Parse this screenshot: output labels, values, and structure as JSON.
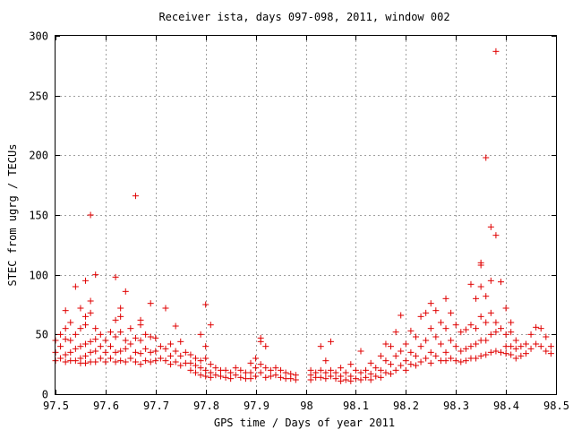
{
  "chart_data": {
    "type": "scatter",
    "title": "Receiver ista, days 097-098, 2011, window 002",
    "xlabel": "GPS time / Days of year 2011",
    "ylabel": "STEC from ugrg / TECUs",
    "xlim": [
      97.5,
      98.5
    ],
    "ylim": [
      0,
      300
    ],
    "x_ticks": [
      "97.5",
      "97.6",
      "97.7",
      "97.8",
      "97.9",
      "98",
      "98.1",
      "98.2",
      "98.3",
      "98.4",
      "98.5"
    ],
    "y_ticks": [
      "0",
      "50",
      "100",
      "150",
      "200",
      "250",
      "300"
    ],
    "grid": true,
    "marker": "plus",
    "marker_color": "#e00000",
    "series": [
      {
        "points": [
          [
            97.5,
            45
          ],
          [
            97.5,
            35
          ],
          [
            97.5,
            28
          ],
          [
            97.51,
            50
          ],
          [
            97.51,
            40
          ],
          [
            97.51,
            30
          ],
          [
            97.52,
            70
          ],
          [
            97.52,
            55
          ],
          [
            97.52,
            46
          ],
          [
            97.52,
            33
          ],
          [
            97.52,
            27
          ],
          [
            97.53,
            60
          ],
          [
            97.53,
            45
          ],
          [
            97.53,
            35
          ],
          [
            97.53,
            28
          ],
          [
            97.54,
            90
          ],
          [
            97.54,
            50
          ],
          [
            97.54,
            38
          ],
          [
            97.54,
            28
          ],
          [
            97.55,
            72
          ],
          [
            97.55,
            55
          ],
          [
            97.55,
            40
          ],
          [
            97.55,
            30
          ],
          [
            97.55,
            26
          ],
          [
            97.56,
            95
          ],
          [
            97.56,
            65
          ],
          [
            97.56,
            58
          ],
          [
            97.56,
            42
          ],
          [
            97.56,
            32
          ],
          [
            97.56,
            26
          ],
          [
            97.57,
            150
          ],
          [
            97.57,
            78
          ],
          [
            97.57,
            68
          ],
          [
            97.57,
            44
          ],
          [
            97.57,
            35
          ],
          [
            97.57,
            27
          ],
          [
            97.58,
            100
          ],
          [
            97.58,
            55
          ],
          [
            97.58,
            46
          ],
          [
            97.58,
            36
          ],
          [
            97.58,
            27
          ],
          [
            97.59,
            50
          ],
          [
            97.59,
            40
          ],
          [
            97.59,
            30
          ],
          [
            97.6,
            45
          ],
          [
            97.6,
            35
          ],
          [
            97.6,
            27
          ],
          [
            97.61,
            52
          ],
          [
            97.61,
            40
          ],
          [
            97.61,
            30
          ],
          [
            97.62,
            98
          ],
          [
            97.62,
            62
          ],
          [
            97.62,
            48
          ],
          [
            97.62,
            35
          ],
          [
            97.62,
            27
          ],
          [
            97.63,
            72
          ],
          [
            97.63,
            65
          ],
          [
            97.63,
            52
          ],
          [
            97.63,
            36
          ],
          [
            97.63,
            28
          ],
          [
            97.64,
            86
          ],
          [
            97.64,
            45
          ],
          [
            97.64,
            38
          ],
          [
            97.64,
            27
          ],
          [
            97.65,
            55
          ],
          [
            97.65,
            42
          ],
          [
            97.65,
            30
          ],
          [
            97.66,
            166
          ],
          [
            97.66,
            47
          ],
          [
            97.66,
            35
          ],
          [
            97.66,
            27
          ],
          [
            97.67,
            62
          ],
          [
            97.67,
            58
          ],
          [
            97.67,
            45
          ],
          [
            97.67,
            34
          ],
          [
            97.67,
            25
          ],
          [
            97.68,
            50
          ],
          [
            97.68,
            38
          ],
          [
            97.68,
            28
          ],
          [
            97.69,
            76
          ],
          [
            97.69,
            48
          ],
          [
            97.69,
            35
          ],
          [
            97.69,
            27
          ],
          [
            97.7,
            47
          ],
          [
            97.7,
            36
          ],
          [
            97.7,
            28
          ],
          [
            97.71,
            40
          ],
          [
            97.71,
            30
          ],
          [
            97.72,
            72
          ],
          [
            97.72,
            38
          ],
          [
            97.72,
            28
          ],
          [
            97.73,
            42
          ],
          [
            97.73,
            32
          ],
          [
            97.73,
            25
          ],
          [
            97.74,
            57
          ],
          [
            97.74,
            36
          ],
          [
            97.74,
            27
          ],
          [
            97.75,
            44
          ],
          [
            97.75,
            32
          ],
          [
            97.75,
            24
          ],
          [
            97.76,
            35
          ],
          [
            97.76,
            26
          ],
          [
            97.77,
            33
          ],
          [
            97.77,
            26
          ],
          [
            97.77,
            20
          ],
          [
            97.78,
            30
          ],
          [
            97.78,
            24
          ],
          [
            97.78,
            18
          ],
          [
            97.79,
            50
          ],
          [
            97.79,
            28
          ],
          [
            97.79,
            22
          ],
          [
            97.79,
            16
          ],
          [
            97.8,
            75
          ],
          [
            97.8,
            40
          ],
          [
            97.8,
            30
          ],
          [
            97.8,
            20
          ],
          [
            97.8,
            15
          ],
          [
            97.81,
            58
          ],
          [
            97.81,
            25
          ],
          [
            97.81,
            18
          ],
          [
            97.81,
            14
          ],
          [
            97.82,
            22
          ],
          [
            97.82,
            16
          ],
          [
            97.83,
            20
          ],
          [
            97.83,
            15
          ],
          [
            97.84,
            20
          ],
          [
            97.84,
            14
          ],
          [
            97.85,
            18
          ],
          [
            97.85,
            13
          ],
          [
            97.86,
            22
          ],
          [
            97.86,
            16
          ],
          [
            97.87,
            20
          ],
          [
            97.87,
            14
          ],
          [
            97.88,
            18
          ],
          [
            97.88,
            13
          ],
          [
            97.89,
            26
          ],
          [
            97.89,
            18
          ],
          [
            97.89,
            13
          ],
          [
            97.9,
            30
          ],
          [
            97.9,
            22
          ],
          [
            97.9,
            15
          ],
          [
            97.91,
            47
          ],
          [
            97.91,
            44
          ],
          [
            97.91,
            25
          ],
          [
            97.91,
            18
          ],
          [
            97.92,
            40
          ],
          [
            97.92,
            22
          ],
          [
            97.92,
            14
          ],
          [
            97.93,
            20
          ],
          [
            97.93,
            15
          ],
          [
            97.94,
            22
          ],
          [
            97.94,
            16
          ],
          [
            97.95,
            20
          ],
          [
            97.95,
            14
          ],
          [
            97.96,
            18
          ],
          [
            97.96,
            13
          ],
          [
            97.97,
            17
          ],
          [
            97.97,
            13
          ],
          [
            97.98,
            16
          ],
          [
            97.98,
            12
          ],
          [
            98.01,
            20
          ],
          [
            98.01,
            16
          ],
          [
            98.01,
            12
          ],
          [
            98.02,
            18
          ],
          [
            98.02,
            14
          ],
          [
            98.03,
            40
          ],
          [
            98.03,
            20
          ],
          [
            98.03,
            14
          ],
          [
            98.04,
            28
          ],
          [
            98.04,
            18
          ],
          [
            98.04,
            13
          ],
          [
            98.05,
            44
          ],
          [
            98.05,
            20
          ],
          [
            98.05,
            15
          ],
          [
            98.06,
            18
          ],
          [
            98.06,
            13
          ],
          [
            98.07,
            22
          ],
          [
            98.07,
            15
          ],
          [
            98.07,
            11
          ],
          [
            98.08,
            18
          ],
          [
            98.08,
            12
          ],
          [
            98.09,
            25
          ],
          [
            98.09,
            15
          ],
          [
            98.09,
            11
          ],
          [
            98.1,
            20
          ],
          [
            98.1,
            13
          ],
          [
            98.11,
            36
          ],
          [
            98.11,
            18
          ],
          [
            98.11,
            12
          ],
          [
            98.12,
            20
          ],
          [
            98.12,
            14
          ],
          [
            98.13,
            26
          ],
          [
            98.13,
            17
          ],
          [
            98.13,
            12
          ],
          [
            98.14,
            22
          ],
          [
            98.14,
            15
          ],
          [
            98.15,
            32
          ],
          [
            98.15,
            20
          ],
          [
            98.15,
            14
          ],
          [
            98.16,
            42
          ],
          [
            98.16,
            28
          ],
          [
            98.16,
            18
          ],
          [
            98.17,
            40
          ],
          [
            98.17,
            25
          ],
          [
            98.17,
            17
          ],
          [
            98.18,
            52
          ],
          [
            98.18,
            32
          ],
          [
            98.18,
            20
          ],
          [
            98.19,
            66
          ],
          [
            98.19,
            36
          ],
          [
            98.19,
            24
          ],
          [
            98.2,
            42
          ],
          [
            98.2,
            28
          ],
          [
            98.2,
            20
          ],
          [
            98.21,
            53
          ],
          [
            98.21,
            35
          ],
          [
            98.21,
            25
          ],
          [
            98.22,
            48
          ],
          [
            98.22,
            32
          ],
          [
            98.22,
            24
          ],
          [
            98.23,
            65
          ],
          [
            98.23,
            40
          ],
          [
            98.23,
            27
          ],
          [
            98.24,
            68
          ],
          [
            98.24,
            45
          ],
          [
            98.24,
            30
          ],
          [
            98.25,
            76
          ],
          [
            98.25,
            55
          ],
          [
            98.25,
            35
          ],
          [
            98.25,
            26
          ],
          [
            98.26,
            70
          ],
          [
            98.26,
            48
          ],
          [
            98.26,
            32
          ],
          [
            98.27,
            60
          ],
          [
            98.27,
            42
          ],
          [
            98.27,
            28
          ],
          [
            98.28,
            80
          ],
          [
            98.28,
            55
          ],
          [
            98.28,
            35
          ],
          [
            98.28,
            28
          ],
          [
            98.29,
            68
          ],
          [
            98.29,
            45
          ],
          [
            98.29,
            30
          ],
          [
            98.3,
            58
          ],
          [
            98.3,
            40
          ],
          [
            98.3,
            28
          ],
          [
            98.31,
            52
          ],
          [
            98.31,
            36
          ],
          [
            98.31,
            27
          ],
          [
            98.32,
            54
          ],
          [
            98.32,
            38
          ],
          [
            98.32,
            28
          ],
          [
            98.33,
            92
          ],
          [
            98.33,
            58
          ],
          [
            98.33,
            40
          ],
          [
            98.33,
            30
          ],
          [
            98.34,
            80
          ],
          [
            98.34,
            55
          ],
          [
            98.34,
            42
          ],
          [
            98.34,
            30
          ],
          [
            98.35,
            110
          ],
          [
            98.35,
            108
          ],
          [
            98.35,
            90
          ],
          [
            98.35,
            65
          ],
          [
            98.35,
            45
          ],
          [
            98.35,
            32
          ],
          [
            98.36,
            198
          ],
          [
            98.36,
            82
          ],
          [
            98.36,
            60
          ],
          [
            98.36,
            45
          ],
          [
            98.36,
            33
          ],
          [
            98.37,
            140
          ],
          [
            98.37,
            95
          ],
          [
            98.37,
            68
          ],
          [
            98.37,
            50
          ],
          [
            98.37,
            35
          ],
          [
            98.38,
            287
          ],
          [
            98.38,
            133
          ],
          [
            98.38,
            60
          ],
          [
            98.38,
            52
          ],
          [
            98.38,
            36
          ],
          [
            98.39,
            94
          ],
          [
            98.39,
            55
          ],
          [
            98.39,
            35
          ],
          [
            98.4,
            72
          ],
          [
            98.4,
            50
          ],
          [
            98.4,
            40
          ],
          [
            98.4,
            34
          ],
          [
            98.41,
            60
          ],
          [
            98.41,
            52
          ],
          [
            98.41,
            40
          ],
          [
            98.41,
            33
          ],
          [
            98.42,
            45
          ],
          [
            98.42,
            38
          ],
          [
            98.42,
            30
          ],
          [
            98.43,
            40
          ],
          [
            98.43,
            32
          ],
          [
            98.44,
            42
          ],
          [
            98.44,
            34
          ],
          [
            98.45,
            50
          ],
          [
            98.45,
            38
          ],
          [
            98.46,
            56
          ],
          [
            98.46,
            42
          ],
          [
            98.47,
            55
          ],
          [
            98.47,
            40
          ],
          [
            98.48,
            48
          ],
          [
            98.48,
            36
          ],
          [
            98.49,
            40
          ],
          [
            98.49,
            34
          ]
        ]
      }
    ]
  }
}
